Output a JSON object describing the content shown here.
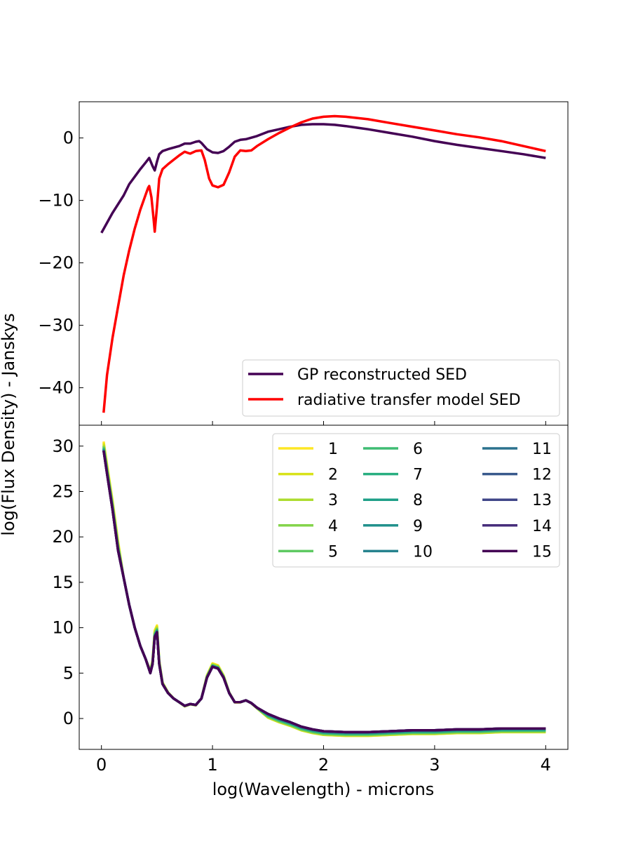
{
  "figure": {
    "shared_xlabel": "log(Wavelength) - microns",
    "shared_ylabel": "log(Flux Density) - Janskys"
  },
  "chart_data": [
    {
      "type": "line",
      "panel": "top",
      "xlim": [
        -0.2,
        4.2
      ],
      "ylim": [
        -46,
        5.8
      ],
      "xticks": [
        0,
        1,
        2,
        3,
        4
      ],
      "yticks": [
        0,
        -10,
        -20,
        -30,
        -40
      ],
      "ytick_labels": [
        "0",
        "−10",
        "−20",
        "−30",
        "−40"
      ],
      "grid": false,
      "legend_position": "lower-right",
      "series": [
        {
          "name": "GP reconstructed SED",
          "color": "#440154",
          "points": [
            [
              0.0,
              -15.2
            ],
            [
              0.1,
              -12.0
            ],
            [
              0.2,
              -9.2
            ],
            [
              0.25,
              -7.4
            ],
            [
              0.3,
              -6.2
            ],
            [
              0.35,
              -5.0
            ],
            [
              0.4,
              -3.9
            ],
            [
              0.43,
              -3.2
            ],
            [
              0.46,
              -4.5
            ],
            [
              0.48,
              -5.2
            ],
            [
              0.5,
              -3.8
            ],
            [
              0.52,
              -2.6
            ],
            [
              0.55,
              -2.1
            ],
            [
              0.6,
              -1.8
            ],
            [
              0.7,
              -1.3
            ],
            [
              0.75,
              -0.9
            ],
            [
              0.8,
              -0.9
            ],
            [
              0.85,
              -0.6
            ],
            [
              0.88,
              -0.5
            ],
            [
              0.9,
              -0.8
            ],
            [
              0.95,
              -1.8
            ],
            [
              1.0,
              -2.3
            ],
            [
              1.05,
              -2.4
            ],
            [
              1.1,
              -2.1
            ],
            [
              1.15,
              -1.4
            ],
            [
              1.2,
              -0.6
            ],
            [
              1.25,
              -0.3
            ],
            [
              1.3,
              -0.2
            ],
            [
              1.4,
              0.3
            ],
            [
              1.5,
              1.0
            ],
            [
              1.6,
              1.4
            ],
            [
              1.7,
              1.8
            ],
            [
              1.8,
              2.1
            ],
            [
              1.9,
              2.2
            ],
            [
              2.0,
              2.2
            ],
            [
              2.1,
              2.1
            ],
            [
              2.2,
              1.9
            ],
            [
              2.4,
              1.4
            ],
            [
              2.6,
              0.8
            ],
            [
              2.8,
              0.2
            ],
            [
              3.0,
              -0.5
            ],
            [
              3.2,
              -1.1
            ],
            [
              3.4,
              -1.6
            ],
            [
              3.6,
              -2.1
            ],
            [
              3.8,
              -2.6
            ],
            [
              4.0,
              -3.2
            ]
          ]
        },
        {
          "name": "radiative transfer model SED",
          "color": "#ff0000",
          "points": [
            [
              0.02,
              -44.0
            ],
            [
              0.05,
              -38.0
            ],
            [
              0.1,
              -32.0
            ],
            [
              0.15,
              -27.0
            ],
            [
              0.2,
              -22.0
            ],
            [
              0.25,
              -18.0
            ],
            [
              0.3,
              -14.5
            ],
            [
              0.35,
              -11.5
            ],
            [
              0.4,
              -9.0
            ],
            [
              0.42,
              -8.0
            ],
            [
              0.43,
              -7.7
            ],
            [
              0.45,
              -9.5
            ],
            [
              0.47,
              -13.0
            ],
            [
              0.48,
              -15.0
            ],
            [
              0.5,
              -11.0
            ],
            [
              0.52,
              -6.5
            ],
            [
              0.55,
              -5.0
            ],
            [
              0.6,
              -4.2
            ],
            [
              0.65,
              -3.5
            ],
            [
              0.7,
              -2.8
            ],
            [
              0.75,
              -2.2
            ],
            [
              0.78,
              -2.4
            ],
            [
              0.8,
              -2.5
            ],
            [
              0.85,
              -2.1
            ],
            [
              0.9,
              -2.0
            ],
            [
              0.93,
              -3.5
            ],
            [
              0.97,
              -6.5
            ],
            [
              1.0,
              -7.6
            ],
            [
              1.05,
              -7.9
            ],
            [
              1.1,
              -7.5
            ],
            [
              1.15,
              -5.5
            ],
            [
              1.2,
              -3.0
            ],
            [
              1.25,
              -2.0
            ],
            [
              1.3,
              -2.1
            ],
            [
              1.35,
              -2.0
            ],
            [
              1.4,
              -1.3
            ],
            [
              1.5,
              -0.2
            ],
            [
              1.6,
              0.8
            ],
            [
              1.7,
              1.7
            ],
            [
              1.8,
              2.5
            ],
            [
              1.9,
              3.1
            ],
            [
              2.0,
              3.4
            ],
            [
              2.1,
              3.5
            ],
            [
              2.2,
              3.4
            ],
            [
              2.4,
              3.0
            ],
            [
              2.6,
              2.4
            ],
            [
              2.8,
              1.8
            ],
            [
              3.0,
              1.2
            ],
            [
              3.2,
              0.6
            ],
            [
              3.4,
              0.1
            ],
            [
              3.6,
              -0.5
            ],
            [
              3.8,
              -1.3
            ],
            [
              4.0,
              -2.1
            ]
          ]
        }
      ]
    },
    {
      "type": "line",
      "panel": "bottom",
      "xlim": [
        -0.2,
        4.2
      ],
      "ylim": [
        -3.4,
        32.3
      ],
      "xticks": [
        0,
        1,
        2,
        3,
        4
      ],
      "xtick_labels": [
        "0",
        "1",
        "2",
        "3",
        "4"
      ],
      "yticks": [
        0,
        5,
        10,
        15,
        20,
        25,
        30
      ],
      "ytick_labels": [
        "0",
        "5",
        "10",
        "15",
        "20",
        "25",
        "30"
      ],
      "grid": false,
      "legend_position": "upper-right",
      "legend_columns": 3,
      "base_curve": [
        [
          0.02,
          29.5
        ],
        [
          0.05,
          27.0
        ],
        [
          0.1,
          23.0
        ],
        [
          0.15,
          18.5
        ],
        [
          0.2,
          15.5
        ],
        [
          0.25,
          12.5
        ],
        [
          0.3,
          10.0
        ],
        [
          0.35,
          8.0
        ],
        [
          0.4,
          6.5
        ],
        [
          0.44,
          5.0
        ],
        [
          0.46,
          6.0
        ],
        [
          0.48,
          9.0
        ],
        [
          0.5,
          9.5
        ],
        [
          0.52,
          6.0
        ],
        [
          0.55,
          3.8
        ],
        [
          0.6,
          2.8
        ],
        [
          0.65,
          2.2
        ],
        [
          0.7,
          1.8
        ],
        [
          0.75,
          1.4
        ],
        [
          0.8,
          1.6
        ],
        [
          0.85,
          1.5
        ],
        [
          0.9,
          2.2
        ],
        [
          0.95,
          4.5
        ],
        [
          1.0,
          5.7
        ],
        [
          1.05,
          5.5
        ],
        [
          1.1,
          4.5
        ],
        [
          1.15,
          2.8
        ],
        [
          1.2,
          1.8
        ],
        [
          1.25,
          1.8
        ],
        [
          1.3,
          2.0
        ],
        [
          1.35,
          1.7
        ],
        [
          1.4,
          1.2
        ],
        [
          1.5,
          0.5
        ],
        [
          1.6,
          0.0
        ],
        [
          1.7,
          -0.4
        ],
        [
          1.8,
          -0.9
        ],
        [
          1.9,
          -1.2
        ],
        [
          2.0,
          -1.4
        ],
        [
          2.2,
          -1.5
        ],
        [
          2.4,
          -1.5
        ],
        [
          2.6,
          -1.4
        ],
        [
          2.8,
          -1.3
        ],
        [
          3.0,
          -1.3
        ],
        [
          3.2,
          -1.2
        ],
        [
          3.4,
          -1.2
        ],
        [
          3.6,
          -1.1
        ],
        [
          3.8,
          -1.1
        ],
        [
          4.0,
          -1.1
        ]
      ],
      "series": [
        {
          "name": "1",
          "color": "#fde725",
          "y_offset_late": -0.3,
          "feature_scale": 1.1
        },
        {
          "name": "2",
          "color": "#d8e219",
          "y_offset_late": -0.3,
          "feature_scale": 1.08
        },
        {
          "name": "3",
          "color": "#addc30",
          "y_offset_late": -0.25,
          "feature_scale": 1.06
        },
        {
          "name": "4",
          "color": "#84d44b",
          "y_offset_late": -0.2,
          "feature_scale": 1.05
        },
        {
          "name": "5",
          "color": "#5ec962",
          "y_offset_late": -0.15,
          "feature_scale": 1.04
        },
        {
          "name": "6",
          "color": "#3fbc73",
          "y_offset_late": -0.1,
          "feature_scale": 1.03
        },
        {
          "name": "7",
          "color": "#28ae80",
          "y_offset_late": -0.05,
          "feature_scale": 1.02
        },
        {
          "name": "8",
          "color": "#1fa088",
          "y_offset_late": 0.0,
          "feature_scale": 1.02
        },
        {
          "name": "9",
          "color": "#21918c",
          "y_offset_late": 0.05,
          "feature_scale": 1.01
        },
        {
          "name": "10",
          "color": "#26828e",
          "y_offset_late": 0.05,
          "feature_scale": 1.01
        },
        {
          "name": "11",
          "color": "#2c728e",
          "y_offset_late": 0.1,
          "feature_scale": 1.0
        },
        {
          "name": "12",
          "color": "#38598c",
          "y_offset_late": 0.1,
          "feature_scale": 1.0
        },
        {
          "name": "13",
          "color": "#404688",
          "y_offset_late": 0.1,
          "feature_scale": 1.0
        },
        {
          "name": "14",
          "color": "#472d7b",
          "y_offset_late": 0.1,
          "feature_scale": 1.0
        },
        {
          "name": "15",
          "color": "#440154",
          "y_offset_late": 0.1,
          "feature_scale": 1.0
        }
      ]
    }
  ]
}
